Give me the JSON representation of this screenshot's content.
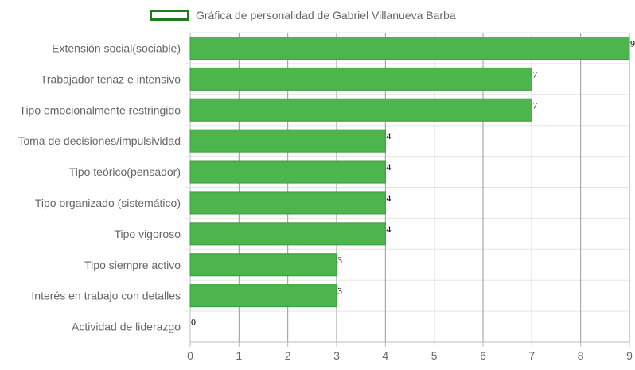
{
  "chart_data": {
    "type": "bar",
    "orientation": "horizontal",
    "categories": [
      "Extensión social(sociable)",
      "Trabajador tenaz e intensivo",
      "Tipo emocionalmente restringido",
      "Toma de decisiones/impulsividad",
      "Tipo teórico(pensador)",
      "Tipo organizado (sistemático)",
      "Tipo vigoroso",
      "Tipo siempre activo",
      "Interés en trabajo con detalles",
      "Actividad de liderazgo"
    ],
    "series": [
      {
        "name": "Gráfica de personalidad de Gabriel Villanueva Barba",
        "values": [
          9,
          7,
          7,
          4,
          4,
          4,
          4,
          3,
          3,
          0
        ]
      }
    ],
    "x_ticks": [
      "0",
      "1",
      "2",
      "3",
      "4",
      "5",
      "6",
      "7",
      "8",
      "9"
    ],
    "xlim": [
      0,
      9
    ],
    "grid": true,
    "legend_position": "top",
    "colors": {
      "bar_fill": "#4cb54c",
      "bar_border": "#3a9a3a",
      "legend_border": "#1e7a1e",
      "grid": "#e5e5e5",
      "grid_vertical": "#999999",
      "text": "#666666"
    }
  }
}
